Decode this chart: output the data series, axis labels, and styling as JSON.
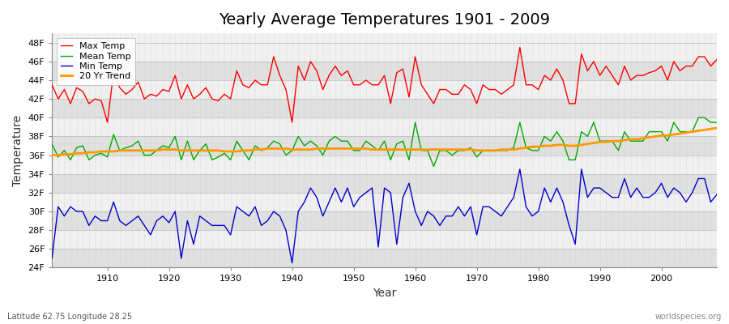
{
  "title": "Yearly Average Temperatures 1901 - 2009",
  "xlabel": "Year",
  "ylabel": "Temperature",
  "subtitle_left": "Latitude 62.75 Longitude 28.25",
  "subtitle_right": "worldspecies.org",
  "ylim": [
    24,
    49
  ],
  "yticks": [
    24,
    26,
    28,
    30,
    32,
    34,
    36,
    38,
    40,
    42,
    44,
    46,
    48
  ],
  "ytick_labels": [
    "24F",
    "26F",
    "28F",
    "30F",
    "32F",
    "34F",
    "36F",
    "38F",
    "40F",
    "42F",
    "44F",
    "46F",
    "48F"
  ],
  "xlim": [
    1901,
    2009
  ],
  "xticks": [
    1910,
    1920,
    1930,
    1940,
    1950,
    1960,
    1970,
    1980,
    1990,
    2000
  ],
  "colors": {
    "max": "#ff0000",
    "mean": "#00aa00",
    "min": "#0000cc",
    "trend": "#ff9900",
    "fig_bg": "#ffffff",
    "plot_bg_light": "#f0f0f0",
    "plot_bg_dark": "#e0e0e0",
    "grid_v": "#cccccc"
  },
  "legend": {
    "max_label": "Max Temp",
    "mean_label": "Mean Temp",
    "min_label": "Min Temp",
    "trend_label": "20 Yr Trend"
  },
  "years": [
    1901,
    1902,
    1903,
    1904,
    1905,
    1906,
    1907,
    1908,
    1909,
    1910,
    1911,
    1912,
    1913,
    1914,
    1915,
    1916,
    1917,
    1918,
    1919,
    1920,
    1921,
    1922,
    1923,
    1924,
    1925,
    1926,
    1927,
    1928,
    1929,
    1930,
    1931,
    1932,
    1933,
    1934,
    1935,
    1936,
    1937,
    1938,
    1939,
    1940,
    1941,
    1942,
    1943,
    1944,
    1945,
    1946,
    1947,
    1948,
    1949,
    1950,
    1951,
    1952,
    1953,
    1954,
    1955,
    1956,
    1957,
    1958,
    1959,
    1960,
    1961,
    1962,
    1963,
    1964,
    1965,
    1966,
    1967,
    1968,
    1969,
    1970,
    1971,
    1972,
    1973,
    1974,
    1975,
    1976,
    1977,
    1978,
    1979,
    1980,
    1981,
    1982,
    1983,
    1984,
    1985,
    1986,
    1987,
    1988,
    1989,
    1990,
    1991,
    1992,
    1993,
    1994,
    1995,
    1996,
    1997,
    1998,
    1999,
    2000,
    2001,
    2002,
    2003,
    2004,
    2005,
    2006,
    2007,
    2008,
    2009
  ],
  "max_temp": [
    43.5,
    42.0,
    43.0,
    41.5,
    43.2,
    42.8,
    41.5,
    42.0,
    41.8,
    39.5,
    44.8,
    43.2,
    42.5,
    43.0,
    43.8,
    42.0,
    42.5,
    42.3,
    43.0,
    42.8,
    44.5,
    42.0,
    43.5,
    42.0,
    42.5,
    43.2,
    42.0,
    41.8,
    42.5,
    42.0,
    45.0,
    43.5,
    43.2,
    44.0,
    43.5,
    43.5,
    46.5,
    44.5,
    43.0,
    39.5,
    45.5,
    44.0,
    46.0,
    45.0,
    43.0,
    44.5,
    45.5,
    44.5,
    45.0,
    43.5,
    43.5,
    44.0,
    43.5,
    43.5,
    44.5,
    41.5,
    44.8,
    45.2,
    42.2,
    46.5,
    43.5,
    42.5,
    41.5,
    43.0,
    43.0,
    42.5,
    42.5,
    43.5,
    43.0,
    41.5,
    43.5,
    43.0,
    43.0,
    42.5,
    43.0,
    43.5,
    47.5,
    43.5,
    43.5,
    43.0,
    44.5,
    44.0,
    45.2,
    44.0,
    41.5,
    41.5,
    46.8,
    45.0,
    46.0,
    44.5,
    45.5,
    44.5,
    43.5,
    45.5,
    44.0,
    44.5,
    44.5,
    44.8,
    45.0,
    45.5,
    44.0,
    46.0,
    45.0,
    45.5,
    45.5,
    46.5,
    46.5,
    45.5,
    46.2
  ],
  "mean_temp": [
    37.2,
    35.8,
    36.5,
    35.5,
    36.8,
    37.0,
    35.5,
    36.0,
    36.2,
    35.8,
    38.2,
    36.5,
    36.8,
    37.0,
    37.5,
    36.0,
    36.0,
    36.5,
    37.0,
    36.8,
    38.0,
    35.5,
    37.5,
    35.5,
    36.5,
    37.2,
    35.5,
    35.8,
    36.2,
    35.5,
    37.5,
    36.5,
    35.5,
    37.0,
    36.5,
    36.8,
    37.5,
    37.2,
    36.0,
    36.5,
    38.0,
    37.0,
    37.5,
    37.0,
    36.0,
    37.5,
    38.0,
    37.5,
    37.5,
    36.5,
    36.5,
    37.5,
    37.0,
    36.5,
    37.5,
    35.5,
    37.2,
    37.5,
    35.5,
    39.5,
    36.5,
    36.5,
    34.8,
    36.5,
    36.5,
    36.0,
    36.5,
    36.5,
    36.8,
    35.8,
    36.5,
    36.5,
    36.5,
    36.5,
    36.5,
    36.8,
    39.5,
    36.8,
    36.5,
    36.5,
    38.0,
    37.5,
    38.5,
    37.5,
    35.5,
    35.5,
    38.5,
    38.0,
    39.5,
    37.5,
    37.5,
    37.5,
    36.5,
    38.5,
    37.5,
    37.5,
    37.5,
    38.5,
    38.5,
    38.5,
    37.5,
    39.5,
    38.5,
    38.5,
    38.5,
    40.0,
    40.0,
    39.5,
    39.5
  ],
  "min_temp": [
    25.0,
    30.5,
    29.5,
    30.5,
    30.0,
    30.0,
    28.5,
    29.5,
    29.0,
    29.0,
    31.0,
    29.0,
    28.5,
    29.0,
    29.5,
    28.5,
    27.5,
    29.0,
    29.5,
    28.8,
    30.0,
    25.0,
    29.0,
    26.5,
    29.5,
    29.0,
    28.5,
    28.5,
    28.5,
    27.5,
    30.5,
    30.0,
    29.5,
    30.5,
    28.5,
    29.0,
    30.0,
    29.5,
    28.0,
    24.5,
    30.0,
    31.0,
    32.5,
    31.5,
    29.5,
    31.0,
    32.5,
    31.0,
    32.5,
    30.5,
    31.5,
    32.0,
    32.5,
    26.2,
    32.5,
    32.0,
    26.5,
    31.5,
    33.0,
    30.0,
    28.5,
    30.0,
    29.5,
    28.5,
    29.5,
    29.5,
    30.5,
    29.5,
    30.5,
    27.5,
    30.5,
    30.5,
    30.0,
    29.5,
    30.5,
    31.5,
    34.5,
    30.5,
    29.5,
    30.0,
    32.5,
    31.0,
    32.5,
    31.0,
    28.5,
    26.5,
    34.5,
    31.5,
    32.5,
    32.5,
    32.0,
    31.5,
    31.5,
    33.5,
    31.5,
    32.5,
    31.5,
    31.5,
    32.0,
    33.0,
    31.5,
    32.5,
    32.0,
    31.0,
    32.0,
    33.5,
    33.5,
    31.0,
    31.8
  ],
  "trend": [
    36.0,
    36.0,
    36.1,
    36.1,
    36.2,
    36.2,
    36.3,
    36.3,
    36.4,
    36.4,
    36.4,
    36.5,
    36.5,
    36.5,
    36.5,
    36.5,
    36.5,
    36.5,
    36.6,
    36.6,
    36.6,
    36.5,
    36.5,
    36.5,
    36.5,
    36.5,
    36.5,
    36.5,
    36.4,
    36.4,
    36.4,
    36.5,
    36.5,
    36.6,
    36.6,
    36.7,
    36.7,
    36.7,
    36.7,
    36.6,
    36.6,
    36.6,
    36.6,
    36.7,
    36.7,
    36.7,
    36.7,
    36.7,
    36.7,
    36.7,
    36.7,
    36.7,
    36.6,
    36.6,
    36.6,
    36.6,
    36.6,
    36.6,
    36.6,
    36.6,
    36.6,
    36.6,
    36.6,
    36.6,
    36.6,
    36.6,
    36.6,
    36.6,
    36.6,
    36.5,
    36.5,
    36.5,
    36.5,
    36.6,
    36.6,
    36.6,
    36.7,
    36.8,
    36.9,
    36.9,
    37.0,
    37.0,
    37.1,
    37.1,
    37.0,
    37.0,
    37.1,
    37.2,
    37.3,
    37.4,
    37.4,
    37.5,
    37.5,
    37.6,
    37.7,
    37.7,
    37.8,
    37.9,
    38.0,
    38.1,
    38.1,
    38.2,
    38.3,
    38.4,
    38.5,
    38.6,
    38.7,
    38.8,
    38.9
  ]
}
